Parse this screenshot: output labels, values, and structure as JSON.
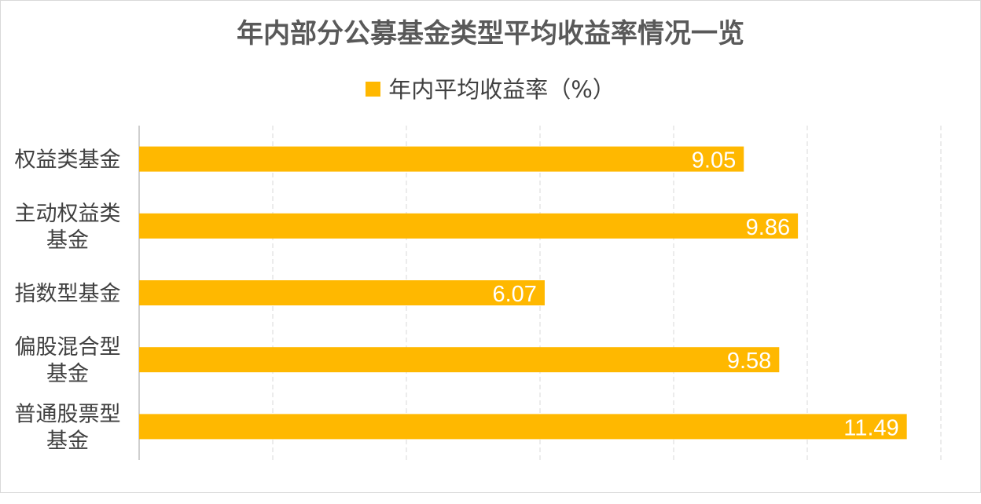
{
  "chart_data": {
    "type": "bar",
    "orientation": "horizontal",
    "title": "年内部分公募基金类型平均收益率情况一览",
    "categories": [
      [
        "权益类基金"
      ],
      [
        "主动权益类",
        "基金"
      ],
      [
        "指数型基金"
      ],
      [
        "偏股混合型",
        "基金"
      ],
      [
        "普通股票型",
        "基金"
      ]
    ],
    "series": [
      {
        "name": "年内平均收益率（%）",
        "values": [
          9.05,
          9.86,
          6.07,
          9.58,
          11.49
        ],
        "labels": [
          "9.05",
          "9.86",
          "6.07",
          "9.58",
          "11.49"
        ],
        "color": "#FFB800"
      }
    ],
    "xlim": [
      0,
      12
    ],
    "grid": "vertical-dashed",
    "legend": "top-center",
    "show_value_axis_labels": false
  }
}
